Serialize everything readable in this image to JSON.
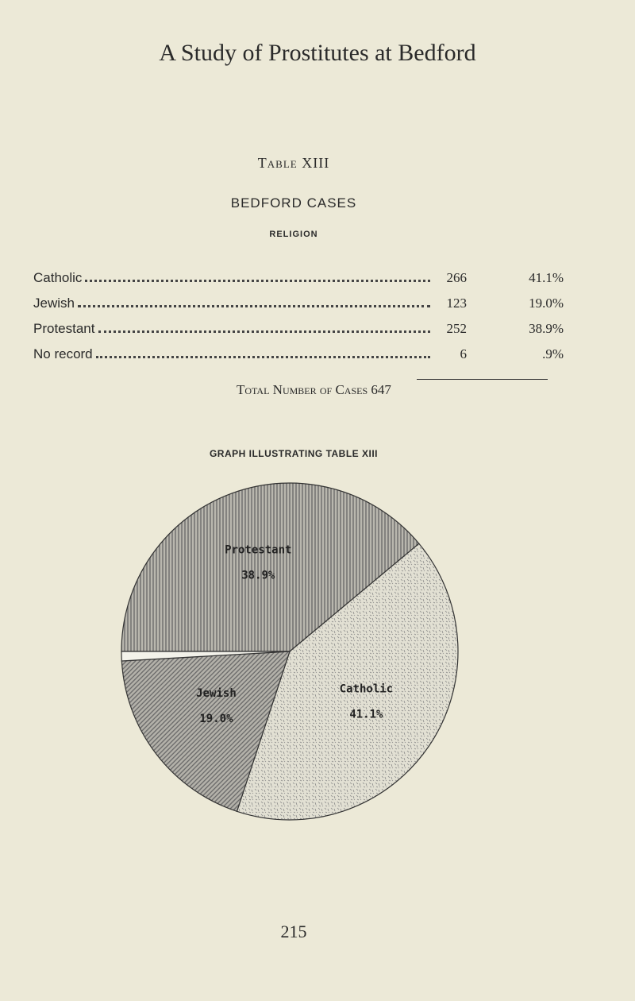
{
  "header": {
    "title": "A Study of Prostitutes at Bedford"
  },
  "table": {
    "title": "Table XIII",
    "subtitle": "BEDFORD CASES",
    "caption": "RELIGION",
    "rows": [
      [
        "Catholic",
        266,
        "41.1%"
      ],
      [
        "Jewish",
        123,
        "19.0%"
      ],
      [
        "Protestant",
        252,
        "38.9%"
      ],
      [
        "No record",
        6,
        ".9%"
      ]
    ],
    "total_label": "Total Number of Cases",
    "total": 647
  },
  "chart_data": {
    "type": "pie",
    "title": "GRAPH ILLUSTRATING TABLE XIII",
    "categories": [
      "Protestant",
      "Catholic",
      "Jewish",
      null
    ],
    "values": [
      38.9,
      41.1,
      19.0,
      0.9
    ],
    "value_labels": [
      "38.9%",
      "41.1%",
      "19.0%",
      null
    ]
  },
  "footer": {
    "page_number": "215"
  }
}
